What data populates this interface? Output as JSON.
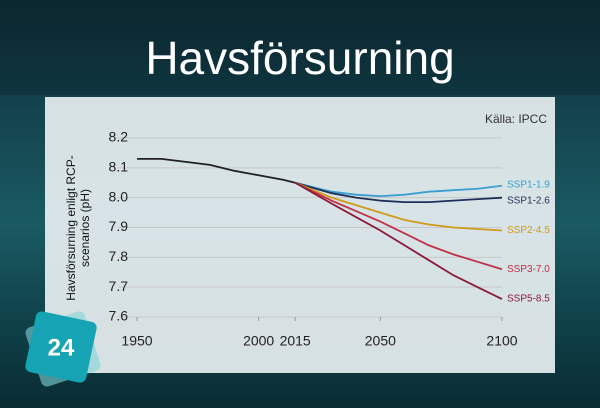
{
  "page_number": "24",
  "chart_data": {
    "type": "line",
    "title": "Havsförsurning",
    "source": "Källa: IPCC",
    "ylabel": [
      "Havsförsurning enligt RCP-",
      "scenarios (pH)"
    ],
    "x": [
      1950,
      1960,
      1970,
      1980,
      1990,
      2000,
      2010,
      2015,
      2030,
      2040,
      2050,
      2060,
      2070,
      2080,
      2090,
      2100
    ],
    "xlim": [
      1950,
      2100
    ],
    "xticks": [
      1950,
      2000,
      2015,
      2050,
      2100
    ],
    "ylim": [
      7.6,
      8.2
    ],
    "yticks": [
      7.6,
      7.7,
      7.8,
      7.9,
      {
        "value": 8,
        "label": "8.0"
      },
      8.1,
      8.2
    ],
    "grid": true,
    "series": [
      {
        "color": "#222222",
        "values": [
          8.13,
          8.13,
          8.12,
          8.11,
          8.09,
          8.075,
          8.06,
          8.05,
          null,
          null,
          null,
          null,
          null,
          null,
          null,
          null
        ]
      },
      {
        "name": "SSP1-1.9",
        "color": "#3a9fd0",
        "values": [
          null,
          null,
          null,
          null,
          null,
          null,
          null,
          8.05,
          8.02,
          8.01,
          8.005,
          8.01,
          8.02,
          8.025,
          8.03,
          8.04
        ]
      },
      {
        "name": "SSP1-2.6",
        "color": "#1f2f5a",
        "values": [
          null,
          null,
          null,
          null,
          null,
          null,
          null,
          8.05,
          8.015,
          8.0,
          7.99,
          7.985,
          7.985,
          7.99,
          7.995,
          8.0
        ]
      },
      {
        "name": "SSP2-4.5",
        "color": "#d09a1a",
        "values": [
          null,
          null,
          null,
          null,
          null,
          null,
          null,
          8.05,
          8.0,
          7.975,
          7.95,
          7.925,
          7.91,
          7.9,
          7.895,
          7.89
        ]
      },
      {
        "name": "SSP3-7.0",
        "color": "#c0304a",
        "values": [
          null,
          null,
          null,
          null,
          null,
          null,
          null,
          8.05,
          7.99,
          7.955,
          7.92,
          7.88,
          7.84,
          7.81,
          7.785,
          7.76
        ]
      },
      {
        "name": "SSP5-8.5",
        "color": "#8b1a3a",
        "values": [
          null,
          null,
          null,
          null,
          null,
          null,
          null,
          8.05,
          7.98,
          7.935,
          7.89,
          7.84,
          7.79,
          7.74,
          7.7,
          7.66
        ]
      }
    ]
  }
}
